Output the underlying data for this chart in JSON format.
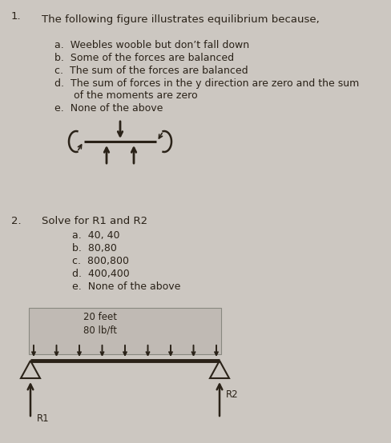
{
  "bg_color": "#ccc7c1",
  "text_color": "#2a2218",
  "q1_number": "1.",
  "q1_title": "The following figure illustrates equilibrium because,",
  "q1_options_a": "a.  Weebles wooble but don’t fall down",
  "q1_options_b": "b.  Some of the forces are balanced",
  "q1_options_c": "c.  The sum of the forces are balanced",
  "q1_options_d1": "d.  The sum of forces in the y direction are zero and the sum",
  "q1_options_d2": "      of the moments are zero",
  "q1_options_e": "e.  None of the above",
  "q2_number": "2.",
  "q2_title": "Solve for R1 and R2",
  "q2_options_a": "a.  40, 40",
  "q2_options_b": "b.  80,80",
  "q2_options_c": "c.  800,800",
  "q2_options_d": "d.  400,400",
  "q2_options_e": "e.  None of the above",
  "beam_label_dist": "20 feet",
  "beam_label_load": "80 lb/ft",
  "r1_label": "R1",
  "r2_label": "R2",
  "box_facecolor": "#c0bab4",
  "box_edgecolor": "#888880"
}
